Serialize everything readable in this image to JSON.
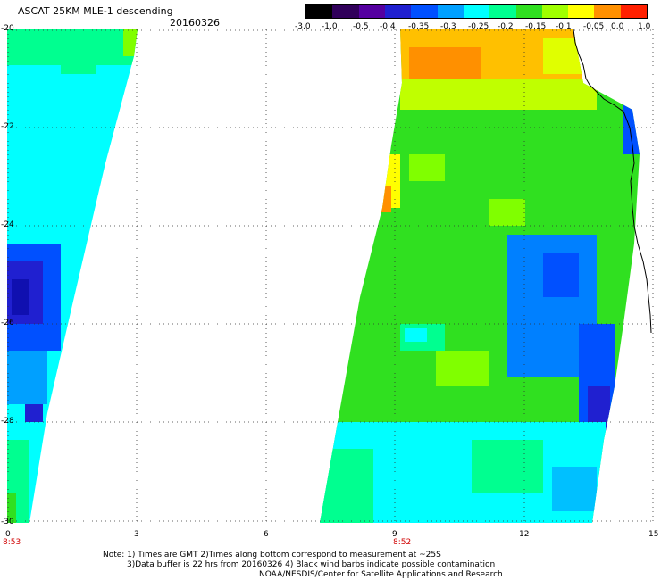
{
  "header": {
    "title": "ASCAT 25KM MLE-1 descending",
    "date": "20160326"
  },
  "colorbar": {
    "tick_labels": [
      "-3.0",
      "-1.0",
      "-0.5",
      "-0.4",
      "-0.35",
      "-0.3",
      "-0.25",
      "-0.2",
      "-0.15",
      "-0.1",
      "-0.05",
      "0.0",
      "1.0"
    ],
    "colors": [
      "#000000",
      "#30005a",
      "#5500a0",
      "#2020d0",
      "#0050ff",
      "#00a0ff",
      "#00ffff",
      "#00ff90",
      "#30e020",
      "#a0ff00",
      "#ffff00",
      "#ff9000",
      "#ff2000"
    ]
  },
  "map": {
    "y_tick_labels": [
      "-20",
      "-22",
      "-24",
      "-26",
      "-28",
      "-30"
    ],
    "x_tick_labels": [
      "0",
      "3",
      "6",
      "9",
      "12",
      "15"
    ],
    "pass_times": [
      "8:53",
      "8:52"
    ]
  },
  "notes": {
    "line1": "Note: 1) Times are GMT 2)Times along bottom correspond to measurement at ~25S",
    "line2": "3)Data buffer is 22 hrs from 20160326 4) Black wind barbs indicate possible contamination",
    "line3": "NOAA/NESDIS/Center for Satellite Applications and Research"
  }
}
